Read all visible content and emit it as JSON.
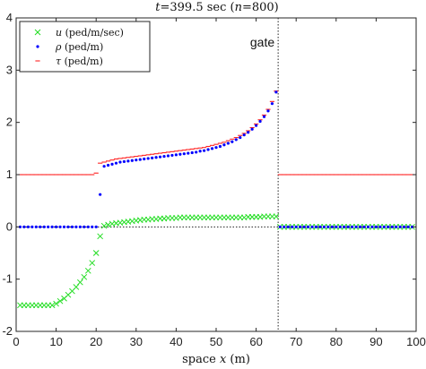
{
  "chart_data": {
    "type": "scatter",
    "title": "t=399.5 sec (n=800)",
    "xlabel": "space x (m)",
    "ylabel": "",
    "xlim": [
      0,
      100
    ],
    "ylim": [
      -2,
      4
    ],
    "xticks": [
      0,
      10,
      20,
      30,
      40,
      50,
      60,
      70,
      80,
      90,
      100
    ],
    "yticks": [
      -2,
      -1,
      0,
      1,
      2,
      3,
      4
    ],
    "grid": false,
    "legend": "top-left",
    "gate_x": 65.5,
    "gate_label": "gate",
    "zero_line": 0,
    "series": [
      {
        "name": "u (ped/m/sec)",
        "marker": "x",
        "color": "#22dd22",
        "x": [
          1,
          2,
          3,
          4,
          5,
          6,
          7,
          8,
          9,
          10,
          11,
          12,
          13,
          14,
          15,
          16,
          17,
          18,
          19,
          20,
          21,
          22,
          23,
          24,
          25,
          26,
          27,
          28,
          29,
          30,
          31,
          32,
          33,
          34,
          35,
          36,
          37,
          38,
          39,
          40,
          41,
          42,
          43,
          44,
          45,
          46,
          47,
          48,
          49,
          50,
          51,
          52,
          53,
          54,
          55,
          56,
          57,
          58,
          59,
          60,
          61,
          62,
          63,
          64,
          65,
          66,
          67,
          68,
          69,
          70,
          71,
          72,
          73,
          74,
          75,
          76,
          77,
          78,
          79,
          80,
          81,
          82,
          83,
          84,
          85,
          86,
          87,
          88,
          89,
          90,
          91,
          92,
          93,
          94,
          95,
          96,
          97,
          98,
          99
        ],
        "y": [
          -1.5,
          -1.5,
          -1.5,
          -1.5,
          -1.5,
          -1.5,
          -1.5,
          -1.5,
          -1.5,
          -1.47,
          -1.42,
          -1.37,
          -1.3,
          -1.23,
          -1.15,
          -1.06,
          -0.96,
          -0.84,
          -0.69,
          -0.5,
          -0.18,
          0.02,
          0.04,
          0.06,
          0.07,
          0.08,
          0.09,
          0.1,
          0.11,
          0.12,
          0.13,
          0.14,
          0.14,
          0.15,
          0.15,
          0.16,
          0.16,
          0.17,
          0.17,
          0.17,
          0.18,
          0.18,
          0.18,
          0.18,
          0.18,
          0.18,
          0.18,
          0.18,
          0.18,
          0.18,
          0.18,
          0.18,
          0.18,
          0.18,
          0.18,
          0.18,
          0.18,
          0.19,
          0.19,
          0.19,
          0.19,
          0.2,
          0.2,
          0.2,
          0.2,
          0,
          0,
          0,
          0,
          0,
          0,
          0,
          0,
          0,
          0,
          0,
          0,
          0,
          0,
          0,
          0,
          0,
          0,
          0,
          0,
          0,
          0,
          0,
          0,
          0,
          0,
          0,
          0,
          0,
          0,
          0,
          0,
          0,
          0
        ]
      },
      {
        "name": "ρ (ped/m)",
        "marker": "dot",
        "color": "#0000ff",
        "x": [
          1,
          2,
          3,
          4,
          5,
          6,
          7,
          8,
          9,
          10,
          11,
          12,
          13,
          14,
          15,
          16,
          17,
          18,
          19,
          20,
          21,
          22,
          23,
          24,
          25,
          26,
          27,
          28,
          29,
          30,
          31,
          32,
          33,
          34,
          35,
          36,
          37,
          38,
          39,
          40,
          41,
          42,
          43,
          44,
          45,
          46,
          47,
          48,
          49,
          50,
          51,
          52,
          53,
          54,
          55,
          56,
          57,
          58,
          59,
          60,
          61,
          62,
          63,
          64,
          65,
          66,
          67,
          68,
          69,
          70,
          71,
          72,
          73,
          74,
          75,
          76,
          77,
          78,
          79,
          80,
          81,
          82,
          83,
          84,
          85,
          86,
          87,
          88,
          89,
          90,
          91,
          92,
          93,
          94,
          95,
          96,
          97,
          98,
          99
        ],
        "y": [
          0,
          0,
          0,
          0,
          0,
          0,
          0,
          0,
          0,
          0,
          0,
          0,
          0,
          0,
          0,
          0,
          0,
          0,
          0,
          0,
          0.62,
          1.16,
          1.18,
          1.2,
          1.22,
          1.24,
          1.25,
          1.26,
          1.27,
          1.28,
          1.29,
          1.3,
          1.31,
          1.32,
          1.33,
          1.34,
          1.35,
          1.36,
          1.37,
          1.38,
          1.39,
          1.4,
          1.41,
          1.42,
          1.43,
          1.45,
          1.46,
          1.48,
          1.5,
          1.52,
          1.54,
          1.57,
          1.6,
          1.63,
          1.67,
          1.71,
          1.76,
          1.81,
          1.87,
          1.94,
          2.02,
          2.11,
          2.22,
          2.36,
          2.58,
          0,
          0,
          0,
          0,
          0,
          0,
          0,
          0,
          0,
          0,
          0,
          0,
          0,
          0,
          0,
          0,
          0,
          0,
          0,
          0,
          0,
          0,
          0,
          0,
          0,
          0,
          0,
          0,
          0,
          0,
          0,
          0,
          0,
          0
        ]
      },
      {
        "name": "τ (ped/m)",
        "marker": "dash",
        "color": "#ff2222",
        "x": [
          1,
          2,
          3,
          4,
          5,
          6,
          7,
          8,
          9,
          10,
          11,
          12,
          13,
          14,
          15,
          16,
          17,
          18,
          19,
          20,
          21,
          22,
          23,
          24,
          25,
          26,
          27,
          28,
          29,
          30,
          31,
          32,
          33,
          34,
          35,
          36,
          37,
          38,
          39,
          40,
          41,
          42,
          43,
          44,
          45,
          46,
          47,
          48,
          49,
          50,
          51,
          52,
          53,
          54,
          55,
          56,
          57,
          58,
          59,
          60,
          61,
          62,
          63,
          64,
          65,
          66,
          67,
          68,
          69,
          70,
          71,
          72,
          73,
          74,
          75,
          76,
          77,
          78,
          79,
          80,
          81,
          82,
          83,
          84,
          85,
          86,
          87,
          88,
          89,
          90,
          91,
          92,
          93,
          94,
          95,
          96,
          97,
          98,
          99
        ],
        "y": [
          1,
          1,
          1,
          1,
          1,
          1,
          1,
          1,
          1,
          1,
          1,
          1,
          1,
          1,
          1,
          1,
          1,
          1,
          1,
          1.03,
          1.22,
          1.24,
          1.26,
          1.28,
          1.3,
          1.31,
          1.32,
          1.33,
          1.34,
          1.35,
          1.36,
          1.37,
          1.38,
          1.39,
          1.4,
          1.41,
          1.42,
          1.43,
          1.44,
          1.45,
          1.46,
          1.47,
          1.48,
          1.49,
          1.5,
          1.51,
          1.52,
          1.54,
          1.56,
          1.58,
          1.6,
          1.62,
          1.65,
          1.68,
          1.71,
          1.75,
          1.79,
          1.84,
          1.9,
          1.97,
          2.05,
          2.14,
          2.25,
          2.4,
          2.6,
          1,
          1,
          1,
          1,
          1,
          1,
          1,
          1,
          1,
          1,
          1,
          1,
          1,
          1,
          1,
          1,
          1,
          1,
          1,
          1,
          1,
          1,
          1,
          1,
          1,
          1,
          1,
          1,
          1,
          1,
          1,
          1,
          1,
          1
        ]
      }
    ]
  }
}
